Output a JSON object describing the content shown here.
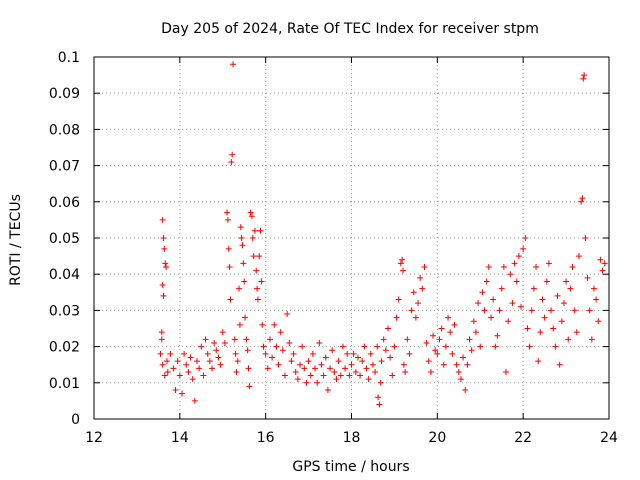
{
  "chart_data": {
    "type": "scatter",
    "title": "Day 205 of 2024, Rate Of TEC Index for receiver stpm",
    "xlabel": "GPS time / hours",
    "ylabel": "ROTI / TECUs",
    "xlim": [
      12,
      24
    ],
    "ylim": [
      0,
      0.1
    ],
    "xticks": [
      12,
      14,
      16,
      18,
      20,
      22,
      24
    ],
    "xtick_labels": [
      "12",
      "14",
      "16",
      "18",
      "20",
      "22",
      "24"
    ],
    "yticks": [
      0,
      0.01,
      0.02,
      0.03,
      0.04,
      0.05,
      0.06,
      0.07,
      0.08,
      0.09,
      0.1
    ],
    "ytick_labels": [
      "0",
      "0.01",
      "0.02",
      "0.03",
      "0.04",
      "0.05",
      "0.06",
      "0.07",
      "0.08",
      "0.09",
      "0.1"
    ],
    "grid": true,
    "marker": "+",
    "color": "#ff0000",
    "series": [
      {
        "name": "ROTI",
        "points": [
          [
            13.55,
            0.018
          ],
          [
            13.58,
            0.024
          ],
          [
            13.6,
            0.055
          ],
          [
            13.62,
            0.05
          ],
          [
            13.64,
            0.047
          ],
          [
            13.66,
            0.043
          ],
          [
            13.68,
            0.042
          ],
          [
            13.6,
            0.037
          ],
          [
            13.62,
            0.034
          ],
          [
            13.58,
            0.022
          ],
          [
            13.6,
            0.015
          ],
          [
            13.65,
            0.012
          ],
          [
            13.7,
            0.016
          ],
          [
            13.72,
            0.013
          ],
          [
            13.78,
            0.018
          ],
          [
            13.85,
            0.014
          ],
          [
            13.9,
            0.008
          ],
          [
            13.95,
            0.016
          ],
          [
            14.0,
            0.012
          ],
          [
            14.05,
            0.007
          ],
          [
            14.1,
            0.018
          ],
          [
            14.15,
            0.015
          ],
          [
            14.2,
            0.013
          ],
          [
            14.25,
            0.017
          ],
          [
            14.3,
            0.011
          ],
          [
            14.35,
            0.005
          ],
          [
            14.4,
            0.016
          ],
          [
            14.45,
            0.014
          ],
          [
            14.5,
            0.02
          ],
          [
            14.55,
            0.012
          ],
          [
            14.6,
            0.022
          ],
          [
            14.65,
            0.018
          ],
          [
            14.7,
            0.016
          ],
          [
            14.75,
            0.014
          ],
          [
            14.8,
            0.021
          ],
          [
            14.85,
            0.019
          ],
          [
            14.9,
            0.017
          ],
          [
            14.95,
            0.015
          ],
          [
            15.0,
            0.024
          ],
          [
            15.05,
            0.021
          ],
          [
            15.1,
            0.057
          ],
          [
            15.12,
            0.055
          ],
          [
            15.14,
            0.047
          ],
          [
            15.16,
            0.042
          ],
          [
            15.18,
            0.033
          ],
          [
            15.2,
            0.071
          ],
          [
            15.22,
            0.073
          ],
          [
            15.24,
            0.098
          ],
          [
            15.28,
            0.022
          ],
          [
            15.3,
            0.018
          ],
          [
            15.32,
            0.013
          ],
          [
            15.35,
            0.016
          ],
          [
            15.38,
            0.036
          ],
          [
            15.4,
            0.026
          ],
          [
            15.42,
            0.053
          ],
          [
            15.44,
            0.05
          ],
          [
            15.46,
            0.048
          ],
          [
            15.48,
            0.043
          ],
          [
            15.5,
            0.038
          ],
          [
            15.52,
            0.028
          ],
          [
            15.55,
            0.022
          ],
          [
            15.58,
            0.019
          ],
          [
            15.6,
            0.014
          ],
          [
            15.62,
            0.009
          ],
          [
            15.65,
            0.057
          ],
          [
            15.68,
            0.056
          ],
          [
            15.7,
            0.05
          ],
          [
            15.72,
            0.045
          ],
          [
            15.75,
            0.052
          ],
          [
            15.78,
            0.041
          ],
          [
            15.8,
            0.036
          ],
          [
            15.82,
            0.033
          ],
          [
            15.85,
            0.045
          ],
          [
            15.88,
            0.052
          ],
          [
            15.9,
            0.038
          ],
          [
            15.92,
            0.026
          ],
          [
            15.95,
            0.02
          ],
          [
            16.0,
            0.018
          ],
          [
            16.05,
            0.014
          ],
          [
            16.1,
            0.022
          ],
          [
            16.15,
            0.017
          ],
          [
            16.2,
            0.026
          ],
          [
            16.25,
            0.02
          ],
          [
            16.3,
            0.015
          ],
          [
            16.35,
            0.024
          ],
          [
            16.4,
            0.019
          ],
          [
            16.45,
            0.012
          ],
          [
            16.5,
            0.029
          ],
          [
            16.55,
            0.021
          ],
          [
            16.6,
            0.016
          ],
          [
            16.65,
            0.018
          ],
          [
            16.7,
            0.013
          ],
          [
            16.75,
            0.011
          ],
          [
            16.8,
            0.015
          ],
          [
            16.85,
            0.02
          ],
          [
            16.9,
            0.014
          ],
          [
            16.95,
            0.01
          ],
          [
            17.0,
            0.016
          ],
          [
            17.05,
            0.012
          ],
          [
            17.1,
            0.018
          ],
          [
            17.15,
            0.014
          ],
          [
            17.2,
            0.01
          ],
          [
            17.25,
            0.021
          ],
          [
            17.3,
            0.015
          ],
          [
            17.35,
            0.012
          ],
          [
            17.4,
            0.017
          ],
          [
            17.45,
            0.008
          ],
          [
            17.5,
            0.014
          ],
          [
            17.55,
            0.019
          ],
          [
            17.6,
            0.013
          ],
          [
            17.65,
            0.011
          ],
          [
            17.7,
            0.016
          ],
          [
            17.75,
            0.012
          ],
          [
            17.8,
            0.02
          ],
          [
            17.85,
            0.014
          ],
          [
            17.9,
            0.018
          ],
          [
            17.95,
            0.012
          ],
          [
            18.0,
            0.015
          ],
          [
            18.05,
            0.018
          ],
          [
            18.1,
            0.013
          ],
          [
            18.15,
            0.017
          ],
          [
            18.2,
            0.012
          ],
          [
            18.25,
            0.016
          ],
          [
            18.3,
            0.02
          ],
          [
            18.35,
            0.014
          ],
          [
            18.4,
            0.011
          ],
          [
            18.45,
            0.018
          ],
          [
            18.5,
            0.015
          ],
          [
            18.55,
            0.013
          ],
          [
            18.6,
            0.02
          ],
          [
            18.62,
            0.006
          ],
          [
            18.65,
            0.004
          ],
          [
            18.68,
            0.01
          ],
          [
            18.7,
            0.016
          ],
          [
            18.75,
            0.022
          ],
          [
            18.8,
            0.019
          ],
          [
            18.85,
            0.025
          ],
          [
            18.9,
            0.017
          ],
          [
            18.95,
            0.012
          ],
          [
            19.0,
            0.02
          ],
          [
            19.05,
            0.028
          ],
          [
            19.1,
            0.033
          ],
          [
            19.15,
            0.043
          ],
          [
            19.18,
            0.044
          ],
          [
            19.2,
            0.041
          ],
          [
            19.22,
            0.015
          ],
          [
            19.25,
            0.013
          ],
          [
            19.3,
            0.022
          ],
          [
            19.35,
            0.018
          ],
          [
            19.4,
            0.03
          ],
          [
            19.45,
            0.035
          ],
          [
            19.5,
            0.028
          ],
          [
            19.55,
            0.032
          ],
          [
            19.6,
            0.039
          ],
          [
            19.65,
            0.036
          ],
          [
            19.7,
            0.042
          ],
          [
            19.75,
            0.021
          ],
          [
            19.8,
            0.016
          ],
          [
            19.85,
            0.013
          ],
          [
            19.9,
            0.023
          ],
          [
            19.95,
            0.019
          ],
          [
            20.0,
            0.018
          ],
          [
            20.05,
            0.022
          ],
          [
            20.1,
            0.025
          ],
          [
            20.15,
            0.015
          ],
          [
            20.2,
            0.02
          ],
          [
            20.25,
            0.028
          ],
          [
            20.3,
            0.024
          ],
          [
            20.35,
            0.018
          ],
          [
            20.4,
            0.026
          ],
          [
            20.45,
            0.015
          ],
          [
            20.5,
            0.013
          ],
          [
            20.55,
            0.011
          ],
          [
            20.6,
            0.017
          ],
          [
            20.65,
            0.008
          ],
          [
            20.7,
            0.015
          ],
          [
            20.75,
            0.022
          ],
          [
            20.8,
            0.019
          ],
          [
            20.85,
            0.027
          ],
          [
            20.9,
            0.024
          ],
          [
            20.95,
            0.032
          ],
          [
            21.0,
            0.02
          ],
          [
            21.05,
            0.035
          ],
          [
            21.1,
            0.03
          ],
          [
            21.15,
            0.038
          ],
          [
            21.2,
            0.042
          ],
          [
            21.25,
            0.028
          ],
          [
            21.3,
            0.033
          ],
          [
            21.35,
            0.02
          ],
          [
            21.4,
            0.023
          ],
          [
            21.45,
            0.03
          ],
          [
            21.5,
            0.036
          ],
          [
            21.55,
            0.042
          ],
          [
            21.6,
            0.013
          ],
          [
            21.65,
            0.027
          ],
          [
            21.7,
            0.04
          ],
          [
            21.75,
            0.032
          ],
          [
            21.8,
            0.043
          ],
          [
            21.85,
            0.038
          ],
          [
            21.9,
            0.045
          ],
          [
            21.95,
            0.031
          ],
          [
            22.0,
            0.047
          ],
          [
            22.05,
            0.05
          ],
          [
            22.1,
            0.025
          ],
          [
            22.15,
            0.02
          ],
          [
            22.2,
            0.03
          ],
          [
            22.25,
            0.036
          ],
          [
            22.3,
            0.042
          ],
          [
            22.35,
            0.016
          ],
          [
            22.4,
            0.024
          ],
          [
            22.45,
            0.033
          ],
          [
            22.5,
            0.028
          ],
          [
            22.55,
            0.038
          ],
          [
            22.6,
            0.043
          ],
          [
            22.65,
            0.03
          ],
          [
            22.7,
            0.025
          ],
          [
            22.75,
            0.02
          ],
          [
            22.8,
            0.034
          ],
          [
            22.85,
            0.015
          ],
          [
            22.9,
            0.027
          ],
          [
            22.95,
            0.032
          ],
          [
            23.0,
            0.038
          ],
          [
            23.05,
            0.022
          ],
          [
            23.1,
            0.036
          ],
          [
            23.15,
            0.042
          ],
          [
            23.2,
            0.03
          ],
          [
            23.25,
            0.024
          ],
          [
            23.3,
            0.045
          ],
          [
            23.35,
            0.06
          ],
          [
            23.38,
            0.061
          ],
          [
            23.4,
            0.094
          ],
          [
            23.42,
            0.095
          ],
          [
            23.45,
            0.05
          ],
          [
            23.5,
            0.039
          ],
          [
            23.55,
            0.03
          ],
          [
            23.6,
            0.022
          ],
          [
            23.65,
            0.036
          ],
          [
            23.7,
            0.033
          ],
          [
            23.75,
            0.027
          ],
          [
            23.8,
            0.044
          ],
          [
            23.85,
            0.041
          ],
          [
            23.9,
            0.043
          ]
        ]
      }
    ]
  }
}
